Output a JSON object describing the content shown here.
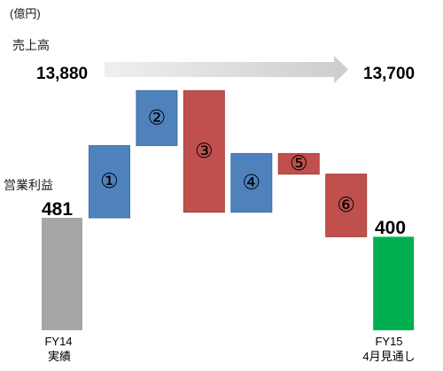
{
  "chart_data": {
    "type": "bar",
    "variant": "waterfall",
    "title": "",
    "unit": "(億円)",
    "metric_label": "営業利益",
    "revenue": {
      "label": "売上高",
      "from": "13,880",
      "to": "13,700"
    },
    "start": {
      "label_lines": [
        "FY14",
        "実績"
      ],
      "value": 481
    },
    "steps": [
      {
        "label": "①",
        "value": 309
      },
      {
        "label": "②",
        "value": 235
      },
      {
        "label": "③",
        "value": -520
      },
      {
        "label": "④",
        "value": 251
      },
      {
        "label": "⑤",
        "value": -88
      },
      {
        "label": "⑥",
        "value": -268
      }
    ],
    "end": {
      "label_lines": [
        "FY15",
        "4月見通し"
      ],
      "value": 400
    },
    "grid": false,
    "colors": {
      "start": "#a6a6a6",
      "increase": "#4f81bd",
      "increase_border": "#3f6fa8",
      "decrease": "#c0504d",
      "decrease_border": "#a9403d",
      "end": "#00b050"
    }
  }
}
